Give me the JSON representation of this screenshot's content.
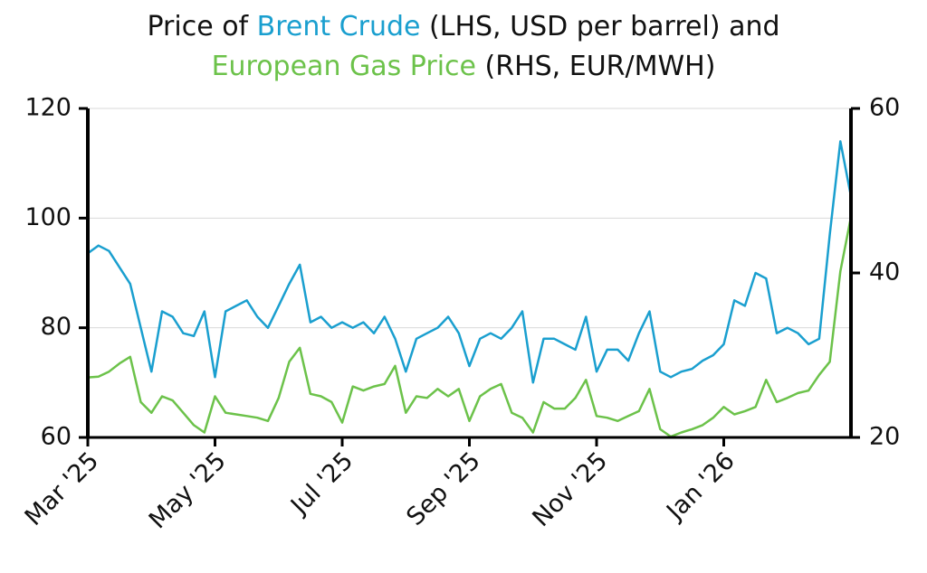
{
  "chart_data": {
    "type": "line",
    "title_parts": [
      "Price of",
      "(LHS, USD per barrel) and",
      "(RHS, EUR/MWH)"
    ],
    "categories": [
      "Mar '25",
      null,
      null,
      null,
      null,
      null,
      null,
      null,
      null,
      null,
      null,
      null,
      "May '25",
      null,
      null,
      null,
      null,
      null,
      null,
      null,
      null,
      null,
      null,
      null,
      "Jul '25",
      null,
      null,
      null,
      null,
      null,
      null,
      null,
      null,
      null,
      null,
      null,
      "Sep '25",
      null,
      null,
      null,
      null,
      null,
      null,
      null,
      null,
      null,
      null,
      null,
      "Nov '25",
      null,
      null,
      null,
      null,
      null,
      null,
      null,
      null,
      null,
      null,
      null,
      "Jan '26",
      null,
      null,
      null,
      null,
      null,
      null,
      null,
      null,
      null,
      null,
      null,
      null
    ],
    "series": [
      {
        "name": "Brent Crude",
        "color": "#1a9fcf",
        "axis": "y",
        "values": [
          93.6,
          95,
          94,
          91,
          88,
          80,
          72,
          83,
          82,
          79,
          78.5,
          83,
          71,
          83,
          84,
          85,
          82,
          80,
          84,
          88,
          91.5,
          81,
          82,
          80,
          81,
          80,
          81,
          79,
          82,
          78,
          72,
          78,
          79,
          80,
          82,
          79,
          73,
          78,
          79,
          78,
          80,
          83,
          70,
          78,
          78,
          77,
          76,
          82,
          72,
          76,
          76,
          74,
          79,
          83,
          72,
          71,
          72,
          72.5,
          74,
          75,
          77,
          85,
          84,
          90,
          89,
          79,
          80,
          79,
          77,
          78,
          97,
          114,
          104
        ]
      },
      {
        "name": "European Gas Price",
        "color": "#6cc24a",
        "axis": "y2",
        "values": [
          27.3,
          27.4,
          28,
          29,
          29.8,
          24.3,
          23,
          25,
          24.5,
          23,
          21.5,
          20.6,
          25,
          23,
          22.8,
          22.6,
          22.4,
          22,
          24.8,
          29.2,
          30.9,
          25.3,
          25,
          24.3,
          21.8,
          26.2,
          25.7,
          26.2,
          26.5,
          28.7,
          23,
          25,
          24.8,
          25.9,
          25,
          25.9,
          22,
          25,
          25.9,
          26.5,
          23,
          22.4,
          20.6,
          24.3,
          23.5,
          23.5,
          24.8,
          27,
          22.6,
          22.4,
          22,
          22.6,
          23.2,
          25.9,
          21,
          20.1,
          20.6,
          21,
          21.5,
          22.4,
          23.7,
          22.8,
          23.2,
          23.7,
          27,
          24.3,
          24.8,
          25.4,
          25.7,
          27.6,
          29.2,
          40.2,
          46.8
        ]
      }
    ],
    "ylim": [
      60,
      120
    ],
    "yticks": [
      60,
      80,
      100,
      120
    ],
    "y2lim": [
      20,
      60
    ],
    "y2ticks": [
      20,
      40,
      60
    ],
    "grid": true
  }
}
